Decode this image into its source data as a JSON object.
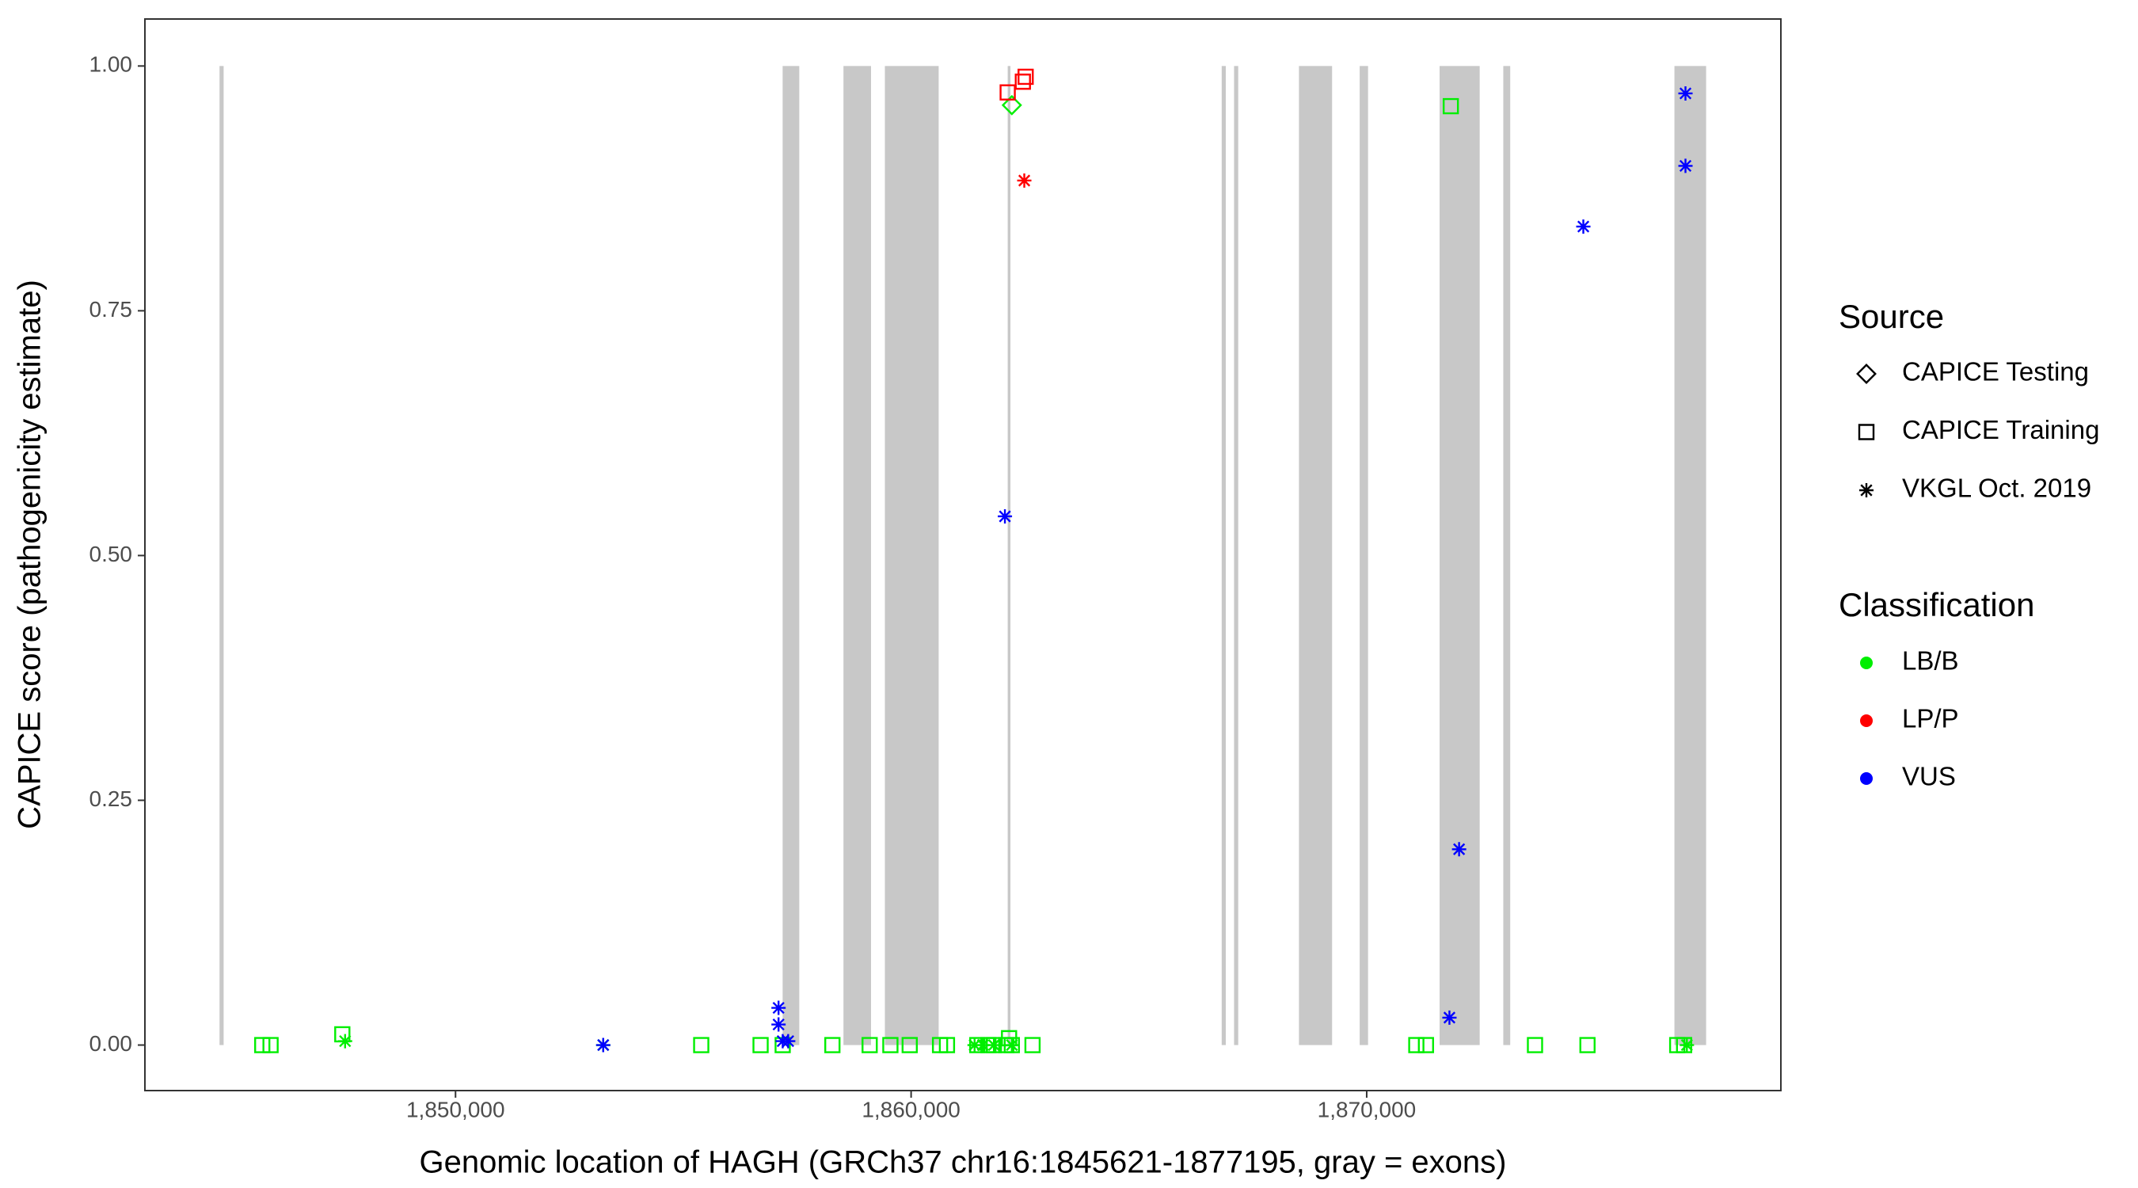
{
  "chart_data": {
    "type": "scatter",
    "x_label": "Genomic location of HAGH (GRCh37 chr16:1845621-1877195, gray = exons)",
    "y_label": "CAPICE score (pathogenicity estimate)",
    "xlim": [
      1843182,
      1879091
    ],
    "ylim": [
      -0.0465,
      1.048
    ],
    "xticks": [
      {
        "value": 1850000,
        "label": "1,850,000"
      },
      {
        "value": 1860000,
        "label": "1,860,000"
      },
      {
        "value": 1870000,
        "label": "1,870,000"
      }
    ],
    "yticks": [
      {
        "value": 0,
        "label": "0.00"
      },
      {
        "value": 0.25,
        "label": "0.25"
      },
      {
        "value": 0.5,
        "label": "0.50"
      },
      {
        "value": 0.75,
        "label": "0.75"
      },
      {
        "value": 1,
        "label": "1.00"
      }
    ],
    "exon_color": "#c8c8c8",
    "exons": [
      [
        1844820,
        1844910
      ],
      [
        1857180,
        1857545
      ],
      [
        1858515,
        1859120
      ],
      [
        1859424,
        1860605
      ],
      [
        1862120,
        1862180
      ],
      [
        1866817,
        1866907
      ],
      [
        1867089,
        1867180
      ],
      [
        1868513,
        1869240
      ],
      [
        1869846,
        1870030
      ],
      [
        1871600,
        1872480
      ],
      [
        1872998,
        1873150
      ],
      [
        1876755,
        1877450
      ]
    ],
    "legend": {
      "source": {
        "title": "Source",
        "entries": [
          {
            "name": "CAPICE Testing",
            "shape": "diamond"
          },
          {
            "name": "CAPICE Training",
            "shape": "square"
          },
          {
            "name": "VKGL Oct. 2019",
            "shape": "star"
          }
        ]
      },
      "classification": {
        "title": "Classification",
        "entries": [
          {
            "name": "LB/B",
            "color": "#00ee00"
          },
          {
            "name": "LP/P",
            "color": "#ff0000"
          },
          {
            "name": "VUS",
            "color": "#0000ff"
          }
        ]
      }
    },
    "series": [
      {
        "source": "CAPICE Training",
        "classification": "LB/B",
        "x": [
          1845758,
          1845940,
          1847515,
          1855393,
          1856696,
          1857181,
          1858272,
          1859090,
          1859545,
          1859969,
          1860635,
          1860787,
          1861453,
          1861696,
          1861817,
          1862090,
          1862150,
          1862211,
          1862665,
          1871089,
          1871301,
          1871846,
          1873694,
          1874846,
          1876816,
          1876967
        ],
        "y": [
          0,
          0,
          0.011,
          0,
          0,
          0,
          0,
          0,
          0,
          0,
          0,
          0,
          0,
          0,
          0,
          0,
          0.007,
          0,
          0,
          0,
          0,
          0.959,
          0,
          0,
          0,
          0
        ]
      },
      {
        "source": "VKGL Oct. 2019",
        "classification": "LB/B",
        "x": [
          1847576,
          1853242,
          1861393,
          1861575,
          1861817,
          1862211,
          1877028
        ],
        "y": [
          0.004,
          0,
          0,
          0,
          0,
          0,
          0
        ]
      },
      {
        "source": "CAPICE Testing",
        "classification": "LB/B",
        "x": [
          1862211
        ],
        "y": [
          0.96
        ]
      },
      {
        "source": "CAPICE Training",
        "classification": "LP/P",
        "x": [
          1862120,
          1862453,
          1862514
        ],
        "y": [
          0.973,
          0.984,
          0.989
        ]
      },
      {
        "source": "VKGL Oct. 2019",
        "classification": "LP/P",
        "x": [
          1862484
        ],
        "y": [
          0.883
        ]
      },
      {
        "source": "VKGL Oct. 2019",
        "classification": "VUS",
        "x": [
          1853242,
          1857090,
          1857090,
          1857181,
          1857302,
          1862059,
          1871816,
          1872028,
          1874755,
          1876997,
          1876997
        ],
        "y": [
          0,
          0.038,
          0.021,
          0.004,
          0.004,
          0.54,
          0.028,
          0.2,
          0.836,
          0.972,
          0.898
        ]
      }
    ]
  }
}
